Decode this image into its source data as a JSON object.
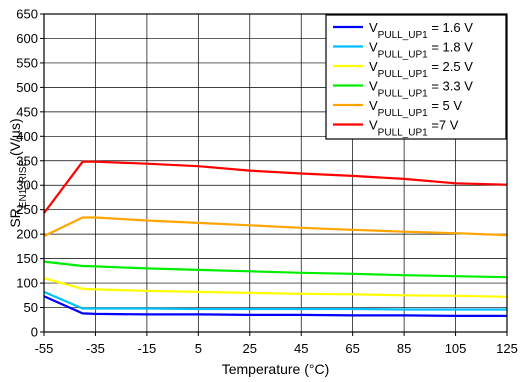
{
  "chart_data": {
    "type": "line",
    "title": "",
    "xlabel": "Temperature (°C)",
    "ylabel": {
      "prefix": "SR",
      "sub": "EN1_RISE",
      "suffix": " (V/µs)"
    },
    "xlim": [
      -55,
      125
    ],
    "ylim": [
      0,
      650
    ],
    "xticks": [
      -55,
      -35,
      -15,
      5,
      25,
      45,
      65,
      85,
      105,
      125
    ],
    "yticks": [
      0,
      50,
      100,
      150,
      200,
      250,
      300,
      350,
      400,
      450,
      500,
      550,
      600,
      650
    ],
    "grid": true,
    "legend_position": "top-right",
    "series": [
      {
        "name": {
          "main": "V",
          "sub": "PULL_UP1",
          "rest": " = 1.6 V"
        },
        "color": "#0000ff",
        "x": [
          -55,
          -40,
          -35,
          -15,
          5,
          25,
          45,
          65,
          85,
          105,
          125
        ],
        "y": [
          73,
          38,
          37,
          36,
          36,
          35,
          35,
          34,
          34,
          33,
          33
        ]
      },
      {
        "name": {
          "main": "V",
          "sub": "PULL_UP1",
          "rest": " = 1.8 V"
        },
        "color": "#00bfff",
        "x": [
          -55,
          -40,
          -35,
          -15,
          5,
          25,
          45,
          65,
          85,
          105,
          125
        ],
        "y": [
          82,
          48,
          48,
          48,
          47,
          47,
          47,
          47,
          46,
          46,
          46
        ]
      },
      {
        "name": {
          "main": "V",
          "sub": "PULL_UP1",
          "rest": " = 2.5 V"
        },
        "color": "#ffff00",
        "x": [
          -55,
          -40,
          -35,
          -15,
          5,
          25,
          45,
          65,
          85,
          105,
          125
        ],
        "y": [
          110,
          88,
          87,
          84,
          82,
          80,
          78,
          77,
          75,
          74,
          72
        ]
      },
      {
        "name": {
          "main": "V",
          "sub": "PULL_UP1",
          "rest": " = 3.3 V"
        },
        "color": "#00ee00",
        "x": [
          -55,
          -40,
          -35,
          -15,
          5,
          25,
          45,
          65,
          85,
          105,
          125
        ],
        "y": [
          144,
          135,
          134,
          130,
          127,
          124,
          121,
          119,
          116,
          114,
          112
        ]
      },
      {
        "name": {
          "main": "V",
          "sub": "PULL_UP1",
          "rest": " = 5 V"
        },
        "color": "#ffa500",
        "x": [
          -55,
          -40,
          -35,
          -15,
          5,
          25,
          45,
          65,
          85,
          105,
          125
        ],
        "y": [
          196,
          234,
          234,
          228,
          223,
          218,
          213,
          209,
          205,
          202,
          198
        ]
      },
      {
        "name": {
          "main": "V",
          "sub": "PULL_UP1",
          "rest": " =7 V"
        },
        "color": "#ff0000",
        "x": [
          -55,
          -40,
          -35,
          -15,
          5,
          25,
          45,
          65,
          85,
          105,
          125
        ],
        "y": [
          243,
          348,
          348,
          344,
          339,
          330,
          324,
          319,
          313,
          304,
          301
        ]
      }
    ]
  }
}
